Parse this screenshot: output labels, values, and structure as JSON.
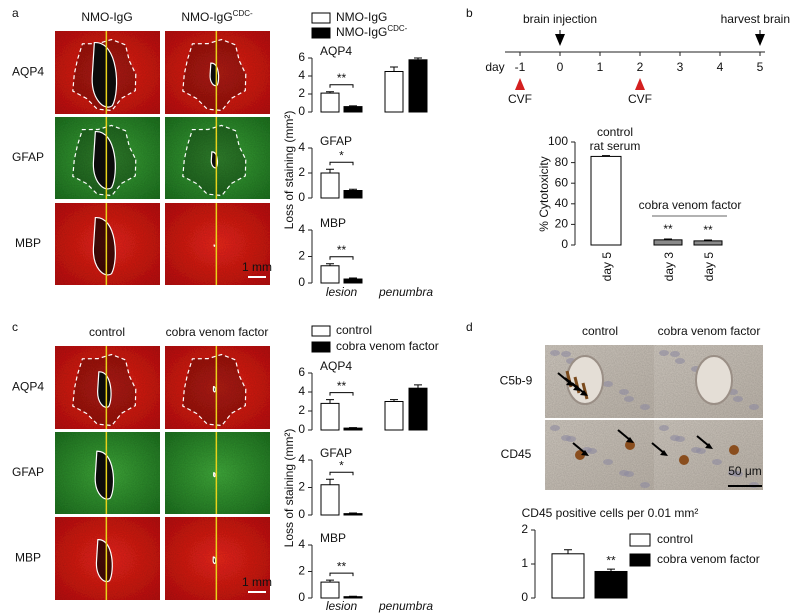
{
  "panels": [
    {
      "label": "a",
      "columns": [
        {
          "text": "NMO-IgG"
        },
        {
          "text": "NMO-IgG",
          "sup": "CDC-"
        }
      ],
      "rows": [
        "AQP4",
        "GFAP",
        "MBP"
      ],
      "scale_bar": "1 mm"
    },
    {
      "label": "b"
    },
    {
      "label": "c",
      "columns": [
        {
          "text": "control"
        },
        {
          "text": "cobra venom factor"
        }
      ],
      "rows": [
        "AQP4",
        "GFAP",
        "MBP"
      ],
      "scale_bar": "1 mm"
    },
    {
      "label": "d",
      "columns": [
        {
          "text": "control"
        },
        {
          "text": "cobra venom factor"
        }
      ],
      "rows": [
        "C5b-9",
        "CD45"
      ],
      "scale_bar": "50 μm"
    }
  ],
  "timeline": {
    "axis_label": "day",
    "ticks": [
      -1,
      0,
      1,
      2,
      3,
      4,
      5
    ],
    "events": [
      {
        "label": "brain injection",
        "day": 0
      },
      {
        "label": "harvest brain",
        "day": 5
      }
    ],
    "treatments": [
      {
        "label": "CVF",
        "day": -1
      },
      {
        "label": "CVF",
        "day": 2
      }
    ]
  },
  "chart_data": [
    {
      "type": "bar",
      "ylabel": "Loss of staining (mm²)",
      "categories": [
        "lesion",
        "penumbra"
      ],
      "series": [
        {
          "name": "NMO-IgG",
          "color": "#ffffff"
        },
        {
          "name": "NMO-IgG",
          "name_sup": "CDC-",
          "color": "#000000"
        }
      ],
      "subplots": [
        {
          "title": "AQP4",
          "ylim": [
            0,
            6
          ],
          "yticks": [
            0,
            2,
            4,
            6
          ],
          "values": [
            [
              2.1,
              4.5
            ],
            [
              0.6,
              5.8
            ]
          ],
          "errors": [
            [
              0.15,
              0.5
            ],
            [
              0.08,
              0.2
            ]
          ],
          "significance": "**"
        },
        {
          "title": "GFAP",
          "ylim": [
            0,
            4
          ],
          "yticks": [
            0,
            2,
            4
          ],
          "values": [
            [
              2.0,
              null
            ],
            [
              0.6,
              null
            ]
          ],
          "errors": [
            [
              0.3,
              null
            ],
            [
              0.1,
              null
            ]
          ],
          "significance": "*"
        },
        {
          "title": "MBP",
          "ylim": [
            0,
            4
          ],
          "yticks": [
            0,
            2,
            4
          ],
          "values": [
            [
              1.3,
              null
            ],
            [
              0.3,
              null
            ]
          ],
          "errors": [
            [
              0.15,
              null
            ],
            [
              0.08,
              null
            ]
          ],
          "significance": "**"
        }
      ]
    },
    {
      "type": "bar",
      "ylabel": "% Cytotoxicity",
      "categories": [
        "day 5",
        "day 3",
        "day 5"
      ],
      "values": [
        86,
        5,
        4
      ],
      "errors": [
        0.8,
        0.8,
        0.8
      ],
      "colors": [
        "#ffffff",
        "#8a8a8a",
        "#8a8a8a"
      ],
      "significance": [
        null,
        "**",
        "**"
      ],
      "groups": [
        [
          "control",
          "rat serum"
        ],
        [
          "cobra venom factor"
        ]
      ],
      "ylim": [
        0,
        100
      ],
      "yticks": [
        0,
        20,
        40,
        60,
        80,
        100
      ]
    },
    {
      "type": "bar",
      "ylabel": "Loss of staining (mm²)",
      "categories": [
        "lesion",
        "penumbra"
      ],
      "series": [
        {
          "name": "control",
          "color": "#ffffff"
        },
        {
          "name": "cobra venom factor",
          "color": "#000000"
        }
      ],
      "subplots": [
        {
          "title": "AQP4",
          "ylim": [
            0,
            6
          ],
          "yticks": [
            0,
            2,
            4,
            6
          ],
          "values": [
            [
              2.8,
              3.0
            ],
            [
              0.2,
              4.4
            ]
          ],
          "errors": [
            [
              0.4,
              0.2
            ],
            [
              0.05,
              0.35
            ]
          ],
          "significance": "**"
        },
        {
          "title": "GFAP",
          "ylim": [
            0,
            4
          ],
          "yticks": [
            0,
            2,
            4
          ],
          "values": [
            [
              2.2,
              null
            ],
            [
              0.1,
              null
            ]
          ],
          "errors": [
            [
              0.4,
              null
            ],
            [
              0.05,
              null
            ]
          ],
          "significance": "*"
        },
        {
          "title": "MBP",
          "ylim": [
            0,
            4
          ],
          "yticks": [
            0,
            2,
            4
          ],
          "values": [
            [
              1.2,
              null
            ],
            [
              0.1,
              null
            ]
          ],
          "errors": [
            [
              0.15,
              null
            ],
            [
              0.03,
              null
            ]
          ],
          "significance": "**"
        }
      ]
    },
    {
      "type": "bar",
      "title": "CD45 positive cells per 0.01 mm²",
      "series": [
        {
          "name": "control",
          "color": "#ffffff",
          "values": [
            1.3
          ],
          "errors": [
            0.12
          ]
        },
        {
          "name": "cobra venom factor",
          "color": "#000000",
          "values": [
            0.78
          ],
          "errors": [
            0.07
          ],
          "significance": "**"
        }
      ],
      "ylim": [
        0,
        2
      ],
      "yticks": [
        0,
        1,
        2
      ]
    }
  ]
}
